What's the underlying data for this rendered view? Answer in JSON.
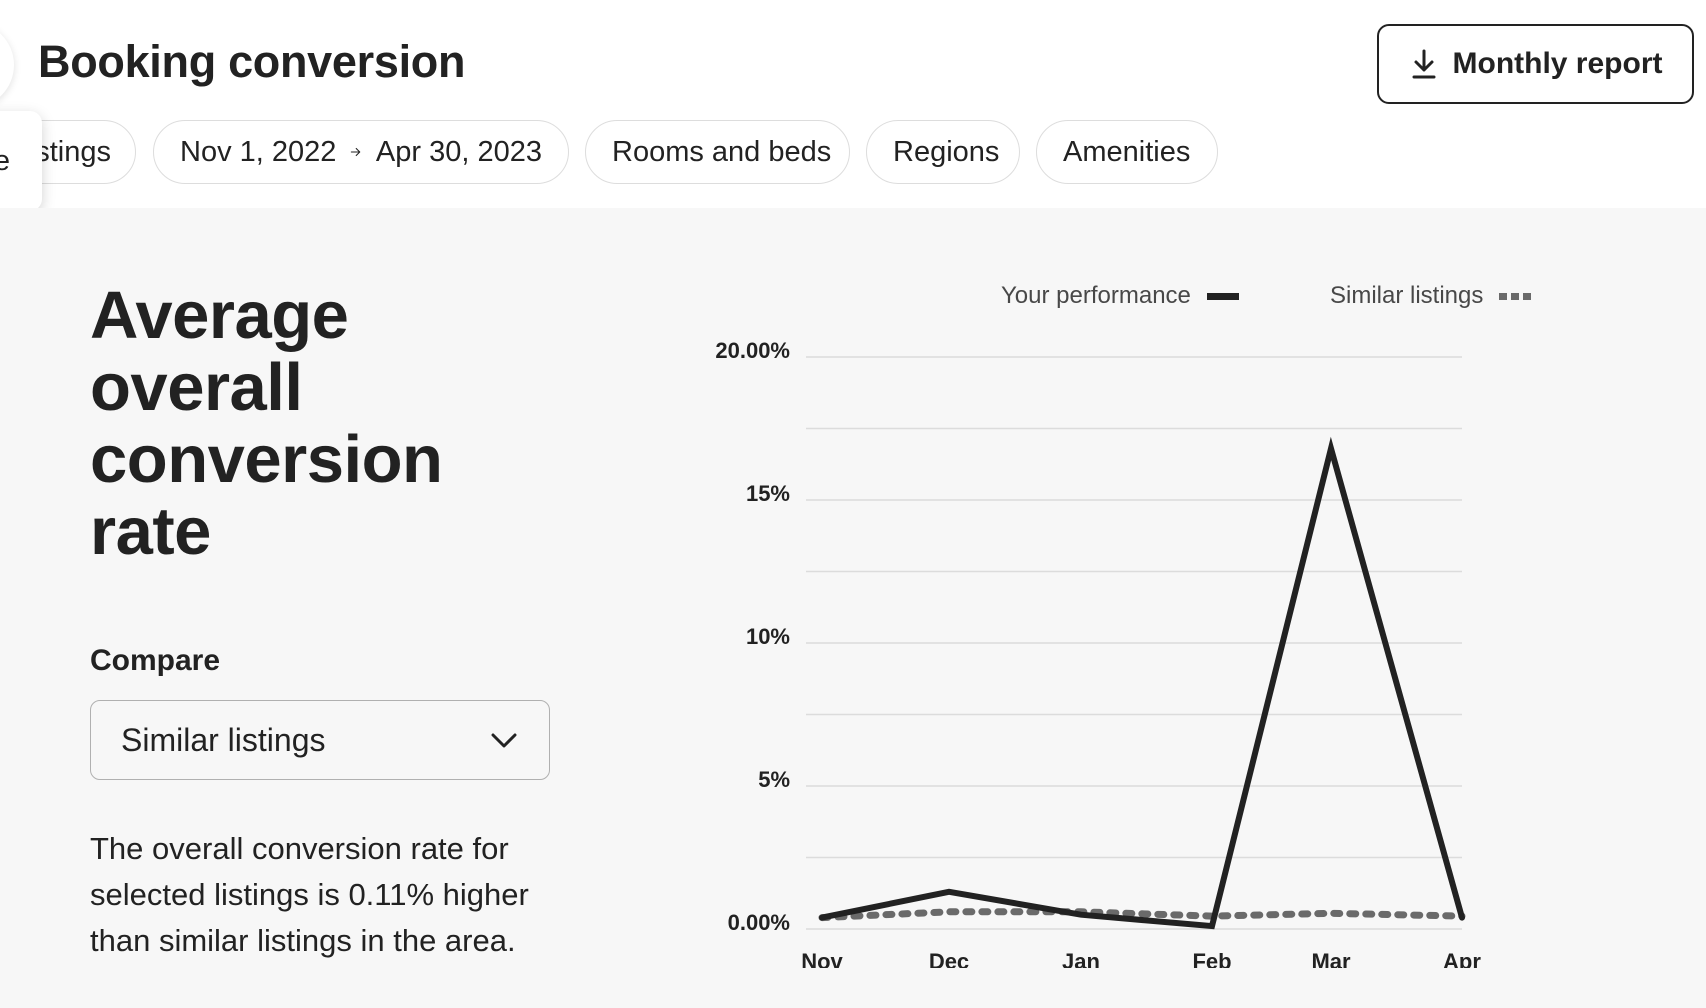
{
  "header": {
    "title": "Booking conversion",
    "report_button": "Monthly report"
  },
  "filters": {
    "listings": "stings",
    "date_start": "Nov 1, 2022",
    "date_end": "Apr 30, 2023",
    "rooms": "Rooms and beds",
    "regions": "Regions",
    "amenities": "Amenities"
  },
  "popover": {
    "text": "e"
  },
  "main": {
    "title": "Average overall conversion rate",
    "compare_label": "Compare",
    "compare_value": "Similar listings",
    "summary": "The overall conversion rate for selected listings is 0.11% higher than similar listings in the area."
  },
  "legend": {
    "you": "Your performance",
    "similar": "Similar listings"
  },
  "chart_data": {
    "type": "line",
    "categories": [
      "Nov",
      "Dec",
      "Jan",
      "Feb",
      "Mar",
      "Apr"
    ],
    "y_tick_labels": [
      "20.00%",
      "15%",
      "10%",
      "5%",
      "0.00%"
    ],
    "y_ticks": [
      20,
      15,
      10,
      5,
      0
    ],
    "ylim": [
      0,
      20
    ],
    "grid": true,
    "legend_position": "top-right",
    "series": [
      {
        "name": "Your performance",
        "style": "solid",
        "color": "#222222",
        "values": [
          0.4,
          1.3,
          0.5,
          0.1,
          16.8,
          0.4
        ]
      },
      {
        "name": "Similar listings",
        "style": "dotted",
        "color": "#6a6a6a",
        "values": [
          0.4,
          0.6,
          0.6,
          0.45,
          0.55,
          0.45
        ]
      }
    ]
  }
}
